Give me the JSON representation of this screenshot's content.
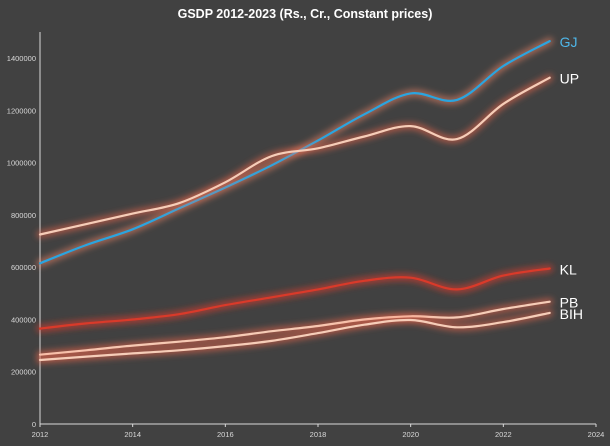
{
  "colors": {
    "background": "#414141",
    "axis": "#d9d9d9",
    "tick_text": "#d9d9d9",
    "title": "#ffffff"
  },
  "chart_data": {
    "type": "line",
    "title": "GSDP 2012-2023 (Rs., Cr., Constant prices)",
    "xlabel": "",
    "ylabel": "",
    "xlim": [
      2012,
      2024
    ],
    "ylim": [
      0,
      1500000
    ],
    "x_ticks": [
      2012,
      2014,
      2016,
      2018,
      2020,
      2022,
      2024
    ],
    "y_ticks": [
      0,
      200000,
      400000,
      600000,
      800000,
      1000000,
      1200000,
      1400000
    ],
    "grid": false,
    "x": [
      2012,
      2013,
      2014,
      2015,
      2016,
      2017,
      2018,
      2019,
      2020,
      2021,
      2022,
      2023
    ],
    "series": [
      {
        "name": "GJ",
        "label_color": "#4eb6e8",
        "line_color": "#2aa5e0",
        "glow_color": "#ff8a6a",
        "values": [
          615000,
          685000,
          745000,
          825000,
          905000,
          990000,
          1085000,
          1185000,
          1265000,
          1240000,
          1370000,
          1465000
        ]
      },
      {
        "name": "UP",
        "label_color": "#ffffff",
        "line_color": "#f6cdb8",
        "glow_color": "#ff6a4a",
        "values": [
          725000,
          765000,
          805000,
          845000,
          925000,
          1025000,
          1055000,
          1100000,
          1140000,
          1090000,
          1225000,
          1325000
        ]
      },
      {
        "name": "KL",
        "label_color": "#ffffff",
        "line_color": "#d93a2a",
        "glow_color": "#ff3b2a",
        "values": [
          365000,
          385000,
          400000,
          420000,
          455000,
          485000,
          515000,
          548000,
          560000,
          515000,
          568000,
          595000
        ]
      },
      {
        "name": "PB",
        "label_color": "#ffffff",
        "line_color": "#f6cdb8",
        "glow_color": "#ff6a4a",
        "values": [
          265000,
          282000,
          300000,
          315000,
          332000,
          355000,
          375000,
          400000,
          412000,
          408000,
          440000,
          468000
        ]
      },
      {
        "name": "BIH",
        "label_color": "#ffffff",
        "line_color": "#f6cdb8",
        "glow_color": "#ff6a4a",
        "values": [
          245000,
          258000,
          270000,
          282000,
          298000,
          318000,
          348000,
          380000,
          398000,
          370000,
          390000,
          425000
        ]
      }
    ]
  }
}
